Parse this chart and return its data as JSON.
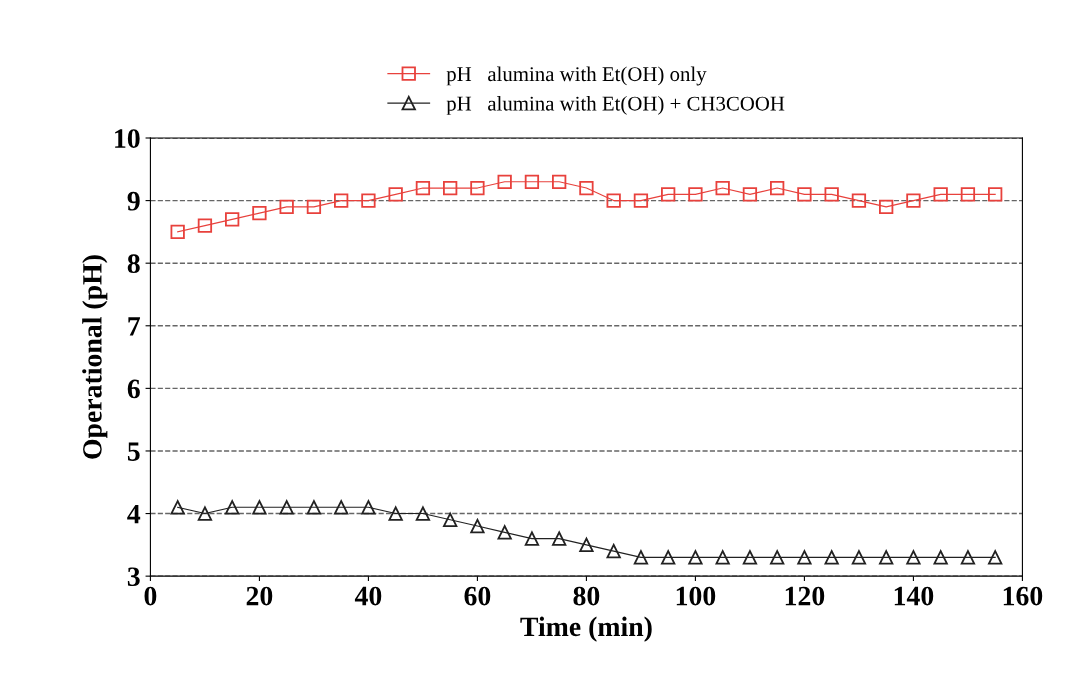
{
  "chart_data": {
    "type": "line",
    "xlabel": "Time (min)",
    "ylabel": "Operational (pH)",
    "x": [
      5,
      10,
      15,
      20,
      25,
      30,
      35,
      40,
      45,
      50,
      55,
      60,
      65,
      70,
      75,
      80,
      85,
      90,
      95,
      100,
      105,
      110,
      115,
      120,
      125,
      130,
      135,
      140,
      145,
      150,
      155
    ],
    "series": [
      {
        "name": "pH   alumina with Et(OH) only",
        "color": "#e8413c",
        "marker": "square",
        "values": [
          8.5,
          8.6,
          8.7,
          8.8,
          8.9,
          8.9,
          9.0,
          9.0,
          9.1,
          9.2,
          9.2,
          9.2,
          9.3,
          9.3,
          9.3,
          9.2,
          9.0,
          9.0,
          9.1,
          9.1,
          9.2,
          9.1,
          9.2,
          9.1,
          9.1,
          9.0,
          8.9,
          9.0,
          9.1,
          9.1,
          9.1
        ]
      },
      {
        "name": "pH   alumina with Et(OH) + CH3COOH",
        "color": "#222222",
        "marker": "triangle",
        "values": [
          4.1,
          4.0,
          4.1,
          4.1,
          4.1,
          4.1,
          4.1,
          4.1,
          4.0,
          4.0,
          3.9,
          3.8,
          3.7,
          3.6,
          3.6,
          3.5,
          3.4,
          3.3,
          3.3,
          3.3,
          3.3,
          3.3,
          3.3,
          3.3,
          3.3,
          3.3,
          3.3,
          3.3,
          3.3,
          3.3,
          3.3
        ]
      }
    ],
    "xlim": [
      0,
      160
    ],
    "xticks": [
      0,
      20,
      40,
      60,
      80,
      100,
      120,
      140,
      160
    ],
    "ylim": [
      3,
      10
    ],
    "yticks": [
      3,
      4,
      5,
      6,
      7,
      8,
      9,
      10
    ],
    "grid": "y",
    "legend": "top",
    "line_style": "solid"
  }
}
